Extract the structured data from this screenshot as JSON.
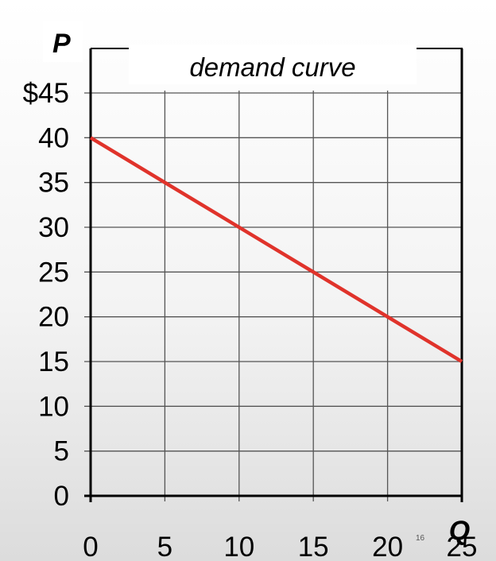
{
  "chart_data": {
    "type": "line",
    "title": "demand curve",
    "xlabel": "Q",
    "ylabel": "P",
    "x_ticks": [
      "0",
      "5",
      "10",
      "15",
      "20",
      "25"
    ],
    "y_ticks": [
      "0",
      "5",
      "10",
      "15",
      "20",
      "25",
      "30",
      "35",
      "40",
      "$45"
    ],
    "xlim": [
      0,
      25
    ],
    "ylim": [
      0,
      45
    ],
    "grid": true,
    "legend": "none",
    "series": [
      {
        "color": "#e0332b",
        "x": [
          0,
          5,
          10,
          15,
          20,
          25
        ],
        "y": [
          40,
          35,
          30,
          25,
          20,
          15
        ]
      }
    ]
  },
  "slide_number": "16",
  "colors": {
    "grid": "#555555",
    "axis": "#000000",
    "line": "#e0332b"
  }
}
